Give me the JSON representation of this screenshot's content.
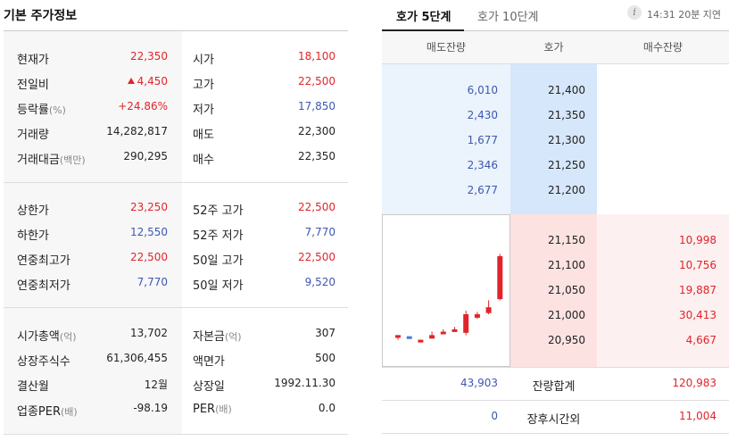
{
  "basic_info": {
    "title": "기본 주가정보",
    "sections": [
      {
        "rows": [
          {
            "k1": "현재가",
            "u1": "",
            "v1": "22,350",
            "c1": "red",
            "arrow": false,
            "k2": "시가",
            "u2": "",
            "v2": "18,100",
            "c2": "red"
          },
          {
            "k1": "전일비",
            "u1": "",
            "v1": "4,450",
            "c1": "red",
            "arrow": true,
            "k2": "고가",
            "u2": "",
            "v2": "22,500",
            "c2": "red"
          },
          {
            "k1": "등락률",
            "u1": "(%)",
            "v1": "+24.86%",
            "c1": "red",
            "arrow": false,
            "k2": "저가",
            "u2": "",
            "v2": "17,850",
            "c2": "blue"
          },
          {
            "k1": "거래량",
            "u1": "",
            "v1": "14,282,817",
            "c1": "",
            "arrow": false,
            "k2": "매도",
            "u2": "",
            "v2": "22,300",
            "c2": ""
          },
          {
            "k1": "거래대금",
            "u1": "(백만)",
            "v1": "290,295",
            "c1": "",
            "arrow": false,
            "k2": "매수",
            "u2": "",
            "v2": "22,350",
            "c2": ""
          }
        ]
      },
      {
        "rows": [
          {
            "k1": "상한가",
            "u1": "",
            "v1": "23,250",
            "c1": "red",
            "arrow": false,
            "k2": "52주 고가",
            "u2": "",
            "v2": "22,500",
            "c2": "red"
          },
          {
            "k1": "하한가",
            "u1": "",
            "v1": "12,550",
            "c1": "blue",
            "arrow": false,
            "k2": "52주 저가",
            "u2": "",
            "v2": "7,770",
            "c2": "blue"
          },
          {
            "k1": "연중최고가",
            "u1": "",
            "v1": "22,500",
            "c1": "red",
            "arrow": false,
            "k2": "50일 고가",
            "u2": "",
            "v2": "22,500",
            "c2": "red"
          },
          {
            "k1": "연중최저가",
            "u1": "",
            "v1": "7,770",
            "c1": "blue",
            "arrow": false,
            "k2": "50일 저가",
            "u2": "",
            "v2": "9,520",
            "c2": "blue"
          }
        ]
      },
      {
        "rows": [
          {
            "k1": "시가총액",
            "u1": "(억)",
            "v1": "13,702",
            "c1": "",
            "arrow": false,
            "k2": "자본금",
            "u2": "(억)",
            "v2": "307",
            "c2": ""
          },
          {
            "k1": "상장주식수",
            "u1": "",
            "v1": "61,306,455",
            "c1": "",
            "arrow": false,
            "k2": "액면가",
            "u2": "",
            "v2": "500",
            "c2": ""
          },
          {
            "k1": "결산월",
            "u1": "",
            "v1": "12월",
            "c1": "",
            "arrow": false,
            "k2": "상장일",
            "u2": "",
            "v2": "1992.11.30",
            "c2": ""
          },
          {
            "k1": "업종PER",
            "u1": "(배)",
            "v1": "-98.19",
            "c1": "",
            "arrow": false,
            "k2": "PER",
            "u2": "(배)",
            "v2": "0.0",
            "c2": ""
          }
        ]
      }
    ]
  },
  "orderbook": {
    "tabs": [
      {
        "label": "호가 5단계",
        "active": true
      },
      {
        "label": "호가 10단계",
        "active": false
      }
    ],
    "info_icon": "info-icon",
    "delay_text": "14:31 20분 지연",
    "headers": {
      "sell": "매도잔량",
      "price": "호가",
      "buy": "매수잔량"
    },
    "asks": [
      {
        "qty": "6,010",
        "price": "21,400"
      },
      {
        "qty": "2,430",
        "price": "21,350"
      },
      {
        "qty": "1,677",
        "price": "21,300"
      },
      {
        "qty": "2,346",
        "price": "21,250"
      },
      {
        "qty": "2,677",
        "price": "21,200"
      }
    ],
    "bids": [
      {
        "price": "21,150",
        "qty": "10,998"
      },
      {
        "price": "21,100",
        "qty": "10,756"
      },
      {
        "price": "21,050",
        "qty": "19,887"
      },
      {
        "price": "21,000",
        "qty": "30,413"
      },
      {
        "price": "20,950",
        "qty": "4,667"
      }
    ],
    "totals": [
      {
        "sell": "43,903",
        "label": "잔량합계",
        "buy": "120,983"
      },
      {
        "sell": "0",
        "label": "장후시간외",
        "buy": "11,004"
      }
    ],
    "mini_chart": {
      "candles": [
        {
          "o": 0.12,
          "c": 0.1,
          "h": 0.12,
          "l": 0.08,
          "color": "red"
        },
        {
          "o": 0.11,
          "c": 0.09,
          "h": 0.11,
          "l": 0.09,
          "color": "blue"
        },
        {
          "o": 0.08,
          "c": 0.06,
          "h": 0.08,
          "l": 0.06,
          "color": "red"
        },
        {
          "o": 0.12,
          "c": 0.09,
          "h": 0.15,
          "l": 0.09,
          "color": "red"
        },
        {
          "o": 0.15,
          "c": 0.13,
          "h": 0.17,
          "l": 0.13,
          "color": "red"
        },
        {
          "o": 0.17,
          "c": 0.16,
          "h": 0.19,
          "l": 0.15,
          "color": "red"
        },
        {
          "o": 0.3,
          "c": 0.14,
          "h": 0.33,
          "l": 0.12,
          "color": "red"
        },
        {
          "o": 0.3,
          "c": 0.27,
          "h": 0.32,
          "l": 0.26,
          "color": "red"
        },
        {
          "o": 0.36,
          "c": 0.31,
          "h": 0.42,
          "l": 0.3,
          "color": "red"
        },
        {
          "o": 0.8,
          "c": 0.43,
          "h": 0.82,
          "l": 0.42,
          "color": "red"
        }
      ]
    }
  }
}
